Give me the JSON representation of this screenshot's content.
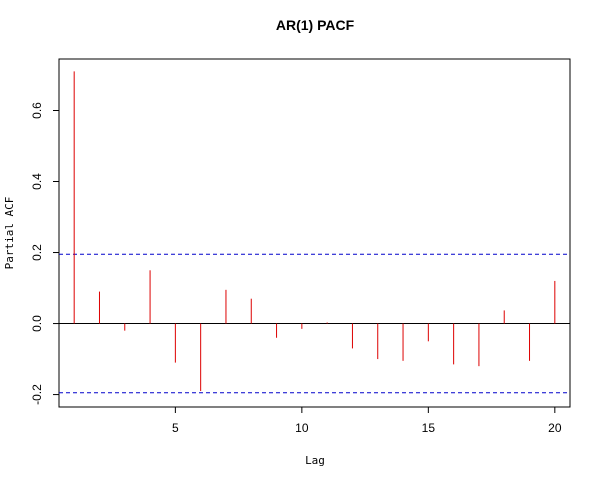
{
  "chart_data": {
    "type": "bar",
    "title": "AR(1) PACF",
    "xlabel": "Lag",
    "ylabel": "Partial ACF",
    "x": [
      1,
      2,
      3,
      4,
      5,
      6,
      7,
      8,
      9,
      10,
      11,
      12,
      13,
      14,
      15,
      16,
      17,
      18,
      19,
      20
    ],
    "values": [
      0.71,
      0.09,
      -0.02,
      0.15,
      -0.11,
      -0.19,
      0.095,
      0.07,
      -0.04,
      -0.015,
      0.003,
      -0.07,
      -0.1,
      -0.105,
      -0.05,
      -0.115,
      -0.12,
      0.037,
      -0.105,
      0.12
    ],
    "xlim": [
      0.4,
      20.6
    ],
    "ylim": [
      -0.235,
      0.745
    ],
    "xticks": [
      5,
      10,
      15,
      20
    ],
    "xtick_labels": [
      "5",
      "10",
      "15",
      "20"
    ],
    "yticks": [
      -0.2,
      0.0,
      0.2,
      0.4,
      0.6
    ],
    "ytick_labels": [
      "-0.2",
      "0.0",
      "0.2",
      "0.4",
      "0.6"
    ],
    "confidence_bounds": [
      0.195,
      -0.195
    ],
    "zero_line": 0,
    "colors": {
      "bars": "#dd0000",
      "confidence": "#0000cc",
      "axis": "#000000"
    },
    "grid": false,
    "legend": "none"
  }
}
